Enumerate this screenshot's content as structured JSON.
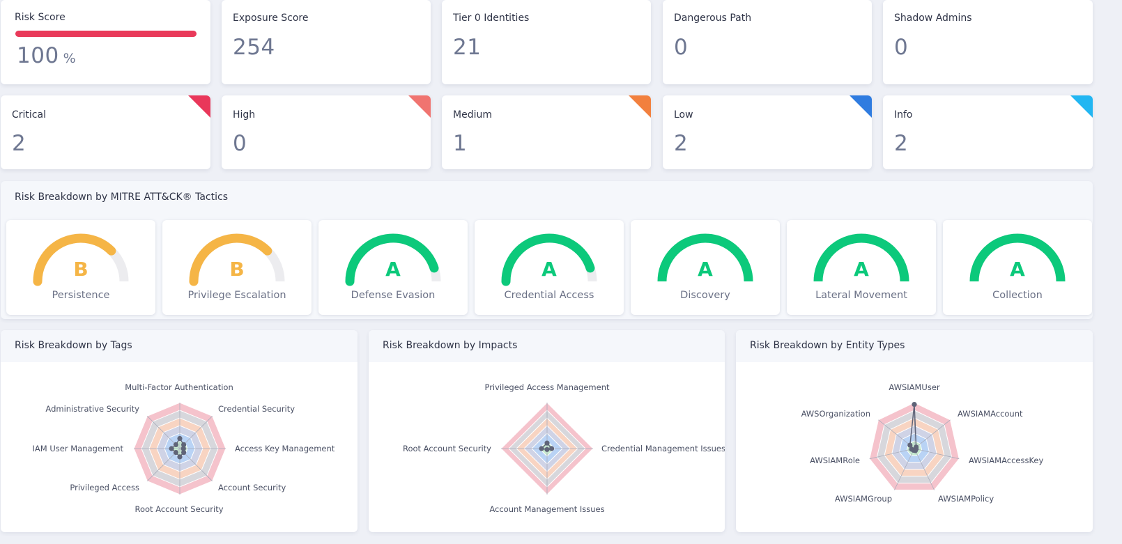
{
  "kpis": [
    {
      "title": "Risk Score",
      "value": "100",
      "unit": "%"
    },
    {
      "title": "Exposure Score",
      "value": "254"
    },
    {
      "title": "Tier 0 Identities",
      "value": "21"
    },
    {
      "title": "Dangerous Path",
      "value": "0"
    },
    {
      "title": "Shadow Admins",
      "value": "0"
    }
  ],
  "severity": [
    {
      "title": "Critical",
      "value": "2",
      "color": "#e9375a"
    },
    {
      "title": "High",
      "value": "0",
      "color": "#f07470"
    },
    {
      "title": "Medium",
      "value": "1",
      "color": "#f2803e"
    },
    {
      "title": "Low",
      "value": "2",
      "color": "#2f7ce0"
    },
    {
      "title": "Info",
      "value": "2",
      "color": "#22b6f2"
    }
  ],
  "mitre": {
    "title": "Risk Breakdown by MITRE ATT&CK® Tactics",
    "tactics": [
      {
        "label": "Persistence",
        "grade": "B",
        "fill": 0.75,
        "color": "#f5b546"
      },
      {
        "label": "Privilege Escalation",
        "grade": "B",
        "fill": 0.75,
        "color": "#f5b546"
      },
      {
        "label": "Defense Evasion",
        "grade": "A",
        "fill": 0.9,
        "color": "#0cc97b"
      },
      {
        "label": "Credential Access",
        "grade": "A",
        "fill": 0.9,
        "color": "#0cc97b"
      },
      {
        "label": "Discovery",
        "grade": "A",
        "fill": 1.0,
        "color": "#0cc97b"
      },
      {
        "label": "Lateral Movement",
        "grade": "A",
        "fill": 1.0,
        "color": "#0cc97b"
      },
      {
        "label": "Collection",
        "grade": "A",
        "fill": 1.0,
        "color": "#0cc97b"
      }
    ]
  },
  "tags": {
    "title": "Risk Breakdown by Tags",
    "axes": [
      "Multi-Factor Authentication",
      "Credential Security",
      "Access Key Management",
      "Account Security",
      "Root Account Security",
      "Privileged Access",
      "IAM User Management",
      "Administrative Security"
    ]
  },
  "impacts": {
    "title": "Risk Breakdown by Impacts",
    "axes": [
      "Privileged Access Management",
      "Credential Management Issues",
      "Account Management Issues",
      "Root Account Security"
    ]
  },
  "entity_types": {
    "title": "Risk Breakdown by Entity Types",
    "axes": [
      "AWSIAMUser",
      "AWSIAMAccount",
      "AWSIAMAccessKey",
      "AWSIAMPolicy",
      "AWSIAMGroup",
      "AWSIAMRole",
      "AWSOrganization"
    ]
  },
  "colors": {
    "ring_colors": [
      "#f5c3cc",
      "#d7d7dc",
      "#f8d4c2",
      "#cfd3e6",
      "#b9d3f5",
      "#c7ebd0"
    ],
    "point_color": "#5f6478"
  }
}
